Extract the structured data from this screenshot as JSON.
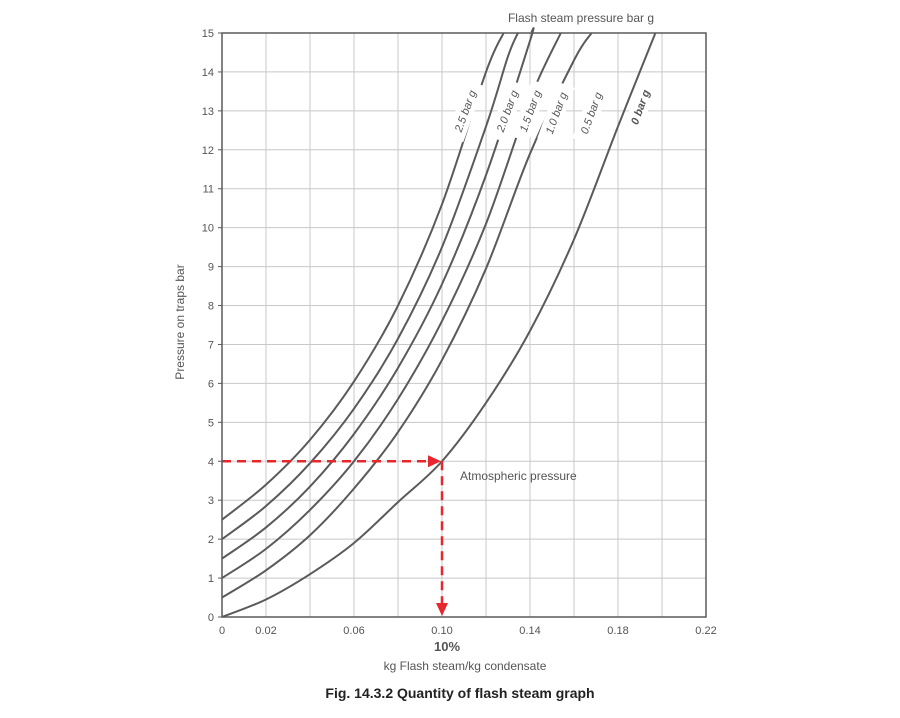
{
  "chart_data": {
    "type": "line",
    "title": "Flash steam pressure bar g",
    "xlabel": "kg Flash steam/kg condensate",
    "ylabel": "Pressure on traps bar",
    "xlim": [
      0,
      0.22
    ],
    "ylim": [
      0,
      15
    ],
    "x_ticks": [
      0,
      0.02,
      0.06,
      0.1,
      0.14,
      0.18,
      0.22
    ],
    "x_tick_labels": [
      "0",
      "0.02",
      "0.06",
      "0.10",
      "0.14",
      "0.18",
      "0.22"
    ],
    "y_ticks": [
      0,
      1,
      2,
      3,
      4,
      5,
      6,
      7,
      8,
      9,
      10,
      11,
      12,
      13,
      14,
      15
    ],
    "grid": true,
    "series": [
      {
        "name": "2.5 bar g",
        "points": [
          [
            0,
            2.5
          ],
          [
            0.02,
            3.4
          ],
          [
            0.04,
            4.55
          ],
          [
            0.06,
            6.05
          ],
          [
            0.08,
            8.0
          ],
          [
            0.1,
            10.6
          ],
          [
            0.12,
            14.0
          ],
          [
            0.128,
            15.0
          ]
        ]
      },
      {
        "name": "2.0 bar g",
        "points": [
          [
            0,
            2.0
          ],
          [
            0.02,
            2.85
          ],
          [
            0.04,
            3.95
          ],
          [
            0.06,
            5.35
          ],
          [
            0.08,
            7.15
          ],
          [
            0.1,
            9.5
          ],
          [
            0.12,
            12.6
          ],
          [
            0.13,
            14.4
          ],
          [
            0.1345,
            15.0
          ]
        ]
      },
      {
        "name": "1.5 bar g",
        "points": [
          [
            0,
            1.5
          ],
          [
            0.02,
            2.3
          ],
          [
            0.04,
            3.35
          ],
          [
            0.06,
            4.7
          ],
          [
            0.08,
            6.4
          ],
          [
            0.1,
            8.55
          ],
          [
            0.12,
            11.35
          ],
          [
            0.14,
            14.8
          ],
          [
            0.1405,
            15.0
          ]
        ]
      },
      {
        "name": "1.0 bar g",
        "points": [
          [
            0,
            1.0
          ],
          [
            0.02,
            1.75
          ],
          [
            0.04,
            2.75
          ],
          [
            0.06,
            4.0
          ],
          [
            0.08,
            5.6
          ],
          [
            0.1,
            7.6
          ],
          [
            0.12,
            10.1
          ],
          [
            0.14,
            13.3
          ],
          [
            0.154,
            15.0
          ]
        ]
      },
      {
        "name": "0.5 bar g",
        "points": [
          [
            0,
            0.5
          ],
          [
            0.02,
            1.2
          ],
          [
            0.04,
            2.1
          ],
          [
            0.06,
            3.3
          ],
          [
            0.08,
            4.75
          ],
          [
            0.1,
            6.6
          ],
          [
            0.12,
            8.95
          ],
          [
            0.14,
            11.9
          ],
          [
            0.16,
            14.3
          ],
          [
            0.168,
            15.0
          ]
        ]
      },
      {
        "name": "0 bar g",
        "points": [
          [
            0,
            0.0
          ],
          [
            0.02,
            0.45
          ],
          [
            0.04,
            1.1
          ],
          [
            0.06,
            1.9
          ],
          [
            0.08,
            2.95
          ],
          [
            0.1,
            4.0
          ],
          [
            0.12,
            5.5
          ],
          [
            0.14,
            7.35
          ],
          [
            0.16,
            9.7
          ],
          [
            0.18,
            12.6
          ],
          [
            0.197,
            15.0
          ]
        ]
      }
    ],
    "reference": {
      "x": 0.1,
      "y": 4,
      "x_marker_label": "10%",
      "annotation": "Atmospheric pressure",
      "color": "#e8262d"
    },
    "line_color": "#5a5a5a",
    "grid_color": "#c8c8c8",
    "caption": "Fig. 14.3.2 Quantity of flash steam graph"
  }
}
